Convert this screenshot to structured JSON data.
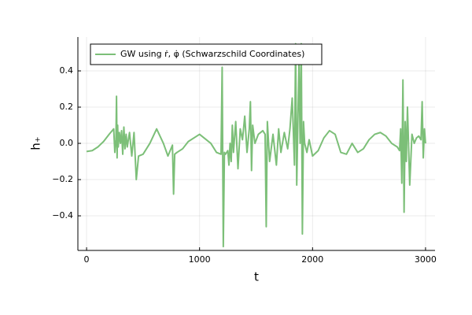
{
  "chart_data": {
    "type": "line",
    "xlabel": "t",
    "ylabel": "h₊",
    "xlim": [
      -77,
      3084
    ],
    "ylim": [
      -0.591,
      0.587
    ],
    "xticks": [
      0,
      1000,
      2000,
      3000
    ],
    "yticks": [
      {
        "value": -0.4,
        "label": "−0.4"
      },
      {
        "value": -0.2,
        "label": "−0.2"
      },
      {
        "value": 0,
        "label": "0.0"
      },
      0.2,
      0.4
    ],
    "grid": true,
    "legend": "upper left",
    "x": [
      0,
      50,
      100,
      150,
      200,
      240,
      250,
      260,
      265,
      270,
      275,
      280,
      290,
      300,
      310,
      320,
      330,
      340,
      350,
      360,
      380,
      400,
      420,
      440,
      460,
      500,
      560,
      620,
      680,
      720,
      760,
      770,
      780,
      800,
      850,
      900,
      1000,
      1100,
      1150,
      1190,
      1200,
      1210,
      1220,
      1230,
      1250,
      1260,
      1270,
      1280,
      1290,
      1300,
      1320,
      1340,
      1360,
      1380,
      1400,
      1420,
      1440,
      1450,
      1460,
      1470,
      1490,
      1520,
      1560,
      1580,
      1590,
      1600,
      1620,
      1650,
      1680,
      1700,
      1720,
      1750,
      1780,
      1800,
      1820,
      1840,
      1850,
      1860,
      1870,
      1880,
      1890,
      1900,
      1910,
      1920,
      1930,
      1950,
      1970,
      2000,
      2050,
      2100,
      2150,
      2200,
      2250,
      2300,
      2350,
      2400,
      2450,
      2500,
      2550,
      2600,
      2650,
      2700,
      2750,
      2770,
      2780,
      2790,
      2800,
      2810,
      2820,
      2830,
      2840,
      2860,
      2880,
      2900,
      2920,
      2940,
      2960,
      2970,
      2980,
      2990,
      3000
    ],
    "series": [
      {
        "name": "GW using ṙ, φ̇ (Schwarzschild Coordinates)",
        "color": "#7cbf78",
        "values": [
          -0.045,
          -0.04,
          -0.02,
          0.01,
          0.05,
          0.08,
          -0.05,
          0.02,
          0.26,
          -0.08,
          0.1,
          -0.02,
          0.06,
          0.0,
          0.07,
          -0.06,
          0.09,
          -0.03,
          0.05,
          -0.02,
          0.06,
          -0.07,
          0.06,
          -0.2,
          -0.07,
          -0.06,
          0.0,
          0.08,
          0.0,
          -0.07,
          -0.01,
          -0.28,
          -0.06,
          -0.05,
          -0.03,
          0.01,
          0.05,
          0.0,
          -0.05,
          -0.06,
          0.42,
          -0.57,
          -0.05,
          -0.06,
          -0.04,
          -0.12,
          0.0,
          -0.1,
          0.1,
          -0.05,
          0.12,
          -0.14,
          0.08,
          0.02,
          0.15,
          -0.05,
          0.08,
          0.23,
          -0.15,
          0.1,
          0.0,
          0.05,
          0.07,
          0.05,
          -0.46,
          0.12,
          -0.1,
          0.05,
          -0.12,
          0.08,
          -0.05,
          0.06,
          -0.03,
          0.08,
          0.25,
          -0.12,
          0.55,
          -0.23,
          0.12,
          0.45,
          0.0,
          0.55,
          -0.5,
          0.12,
          0.0,
          -0.05,
          0.02,
          -0.07,
          -0.04,
          0.03,
          0.07,
          0.05,
          -0.05,
          -0.06,
          0.0,
          -0.05,
          -0.03,
          0.02,
          0.05,
          0.06,
          0.04,
          0.0,
          -0.02,
          -0.04,
          0.08,
          -0.22,
          0.35,
          -0.38,
          0.12,
          -0.1,
          0.2,
          -0.23,
          0.05,
          0.0,
          0.03,
          0.04,
          0.02,
          0.23,
          -0.08,
          0.08,
          0.0
        ]
      }
    ]
  }
}
